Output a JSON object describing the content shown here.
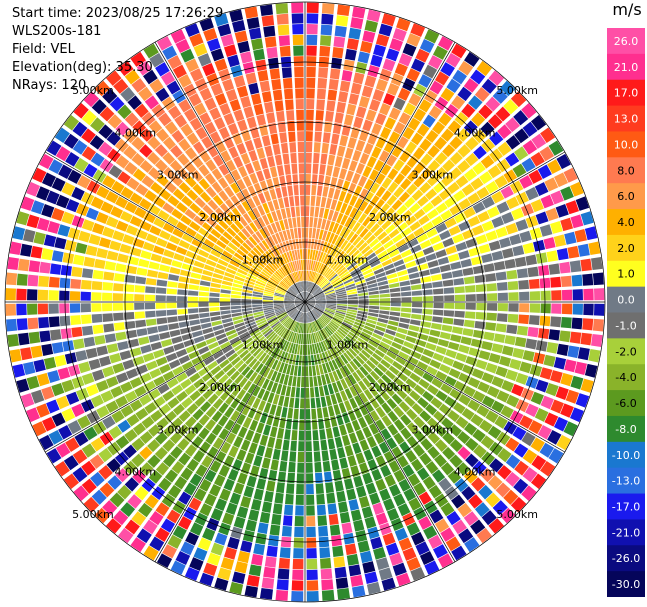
{
  "header": {
    "start_time": "Start time: 2023/08/25 17:26:29",
    "instrument": "WLS200s-181",
    "field": "Field: VEL",
    "elevation": "Elevation(deg): 35.30",
    "nrays": "NRays: 120"
  },
  "chart_data": {
    "type": "heatmap",
    "projection": "polar-ppi",
    "field": "VEL",
    "units": "m/s",
    "nrays": 120,
    "elevation_deg": 35.3,
    "range_rings_km": [
      1.0,
      2.0,
      3.0,
      4.0,
      5.0
    ],
    "range_ring_labels": [
      "1.00km",
      "2.00km",
      "3.00km",
      "4.00km",
      "5.00km"
    ],
    "max_range_km": 5.0,
    "colorbar": {
      "unit_label": "m/s",
      "ticks": [
        "26.0",
        "21.0",
        "17.0",
        "13.0",
        "10.0",
        "8.0",
        "6.0",
        "4.0",
        "2.0",
        "1.0",
        "0.0",
        "-1.0",
        "-2.0",
        "-4.0",
        "-6.0",
        "-8.0",
        "-10.0",
        "-13.0",
        "-17.0",
        "-21.0",
        "-26.0",
        "-30.0"
      ],
      "bins": [
        {
          "min": 26,
          "max": 30,
          "color": "#ff4fa6"
        },
        {
          "min": 21,
          "max": 26,
          "color": "#ff2f8f"
        },
        {
          "min": 17,
          "max": 21,
          "color": "#ff1a1a"
        },
        {
          "min": 13,
          "max": 17,
          "color": "#ff3b1f"
        },
        {
          "min": 10,
          "max": 13,
          "color": "#ff5a14"
        },
        {
          "min": 8,
          "max": 10,
          "color": "#ff7a50"
        },
        {
          "min": 6,
          "max": 8,
          "color": "#ff9a4a"
        },
        {
          "min": 4,
          "max": 6,
          "color": "#ffb000"
        },
        {
          "min": 2,
          "max": 4,
          "color": "#ffd21a"
        },
        {
          "min": 1,
          "max": 2,
          "color": "#ffff1f"
        },
        {
          "min": 0,
          "max": 1,
          "color": "#707a86"
        },
        {
          "min": -1,
          "max": 0,
          "color": "#6f6f6f"
        },
        {
          "min": -2,
          "max": -1,
          "color": "#a8d03a"
        },
        {
          "min": -4,
          "max": -2,
          "color": "#8ab32a"
        },
        {
          "min": -6,
          "max": -4,
          "color": "#5c9a1f"
        },
        {
          "min": -8,
          "max": -6,
          "color": "#2e8a2e"
        },
        {
          "min": -10,
          "max": -8,
          "color": "#1a78d0"
        },
        {
          "min": -13,
          "max": -10,
          "color": "#2a6fe0"
        },
        {
          "min": -17,
          "max": -13,
          "color": "#1a1aee"
        },
        {
          "min": -21,
          "max": -17,
          "color": "#1010b0"
        },
        {
          "min": -26,
          "max": -21,
          "color": "#0a0a80"
        },
        {
          "min": -30,
          "max": -26,
          "color": "#05055a"
        }
      ]
    },
    "velocity_pattern": {
      "description_values": "inner region: north ~ +6 to +13 m/s, east ~ -1 to +1, south ~ -6 to -10, west ~ +1 to +4; outer ranges noisy",
      "sectors": [
        {
          "azimuth_deg": 0,
          "velocity_ms": 12
        },
        {
          "azimuth_deg": 45,
          "velocity_ms": 4
        },
        {
          "azimuth_deg": 90,
          "velocity_ms": -1
        },
        {
          "azimuth_deg": 135,
          "velocity_ms": -5
        },
        {
          "azimuth_deg": 180,
          "velocity_ms": -9
        },
        {
          "azimuth_deg": 225,
          "velocity_ms": -4
        },
        {
          "azimuth_deg": 270,
          "velocity_ms": 1
        },
        {
          "azimuth_deg": 315,
          "velocity_ms": 8
        }
      ],
      "noise_begins_km": 4.0
    }
  }
}
